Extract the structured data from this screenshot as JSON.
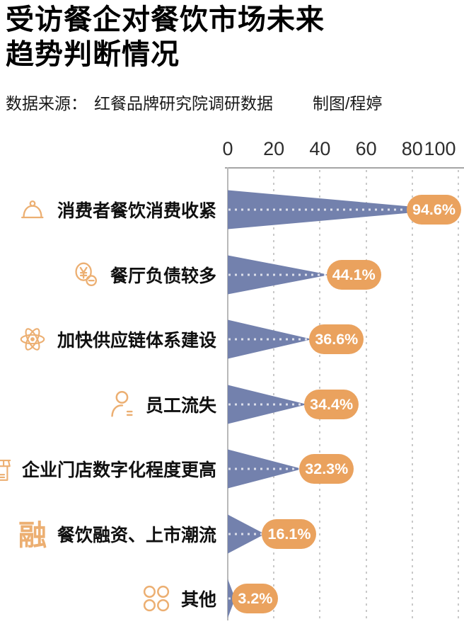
{
  "title": {
    "line1": "受访餐企对餐饮市场未来",
    "line2": "趋势判断情况"
  },
  "source": {
    "prefix": "数据来源：",
    "value": "红餐品牌研究院调研数据",
    "credit": "制图/程婷"
  },
  "chart_data": {
    "type": "bar",
    "variant": "horizontal-wedge",
    "title": "受访餐企对餐饮市场未来趋势判断情况",
    "categories": [
      "消费者餐饮消费收紧",
      "餐厅负债较多",
      "加快供应链体系建设",
      "员工流失",
      "企业门店数字化程度更高",
      "餐饮融资、上市潮流",
      "其他"
    ],
    "values": [
      94.6,
      44.1,
      36.6,
      34.4,
      32.3,
      16.1,
      3.2
    ],
    "value_labels": [
      "94.6%",
      "44.1%",
      "36.6%",
      "34.4%",
      "32.3%",
      "16.1%",
      "3.2%"
    ],
    "icons": [
      "cloche-icon",
      "yuan-coins-icon",
      "atom-icon",
      "person-icon",
      "storefront-icon",
      "finance-rong-icon",
      "grid-dots-icon"
    ],
    "x_ticks": [
      0,
      20,
      40,
      60,
      80,
      100
    ],
    "xlim": [
      0,
      100
    ],
    "grid": "vertical-dotted",
    "legend": "none",
    "colors": {
      "bar": "#7381ad",
      "value_pill": "#eaa25e",
      "icon": "#ecaf72",
      "axis_text": "#2e2e2e",
      "gridline": "#c9c9c9",
      "title_text": "#000000"
    }
  }
}
